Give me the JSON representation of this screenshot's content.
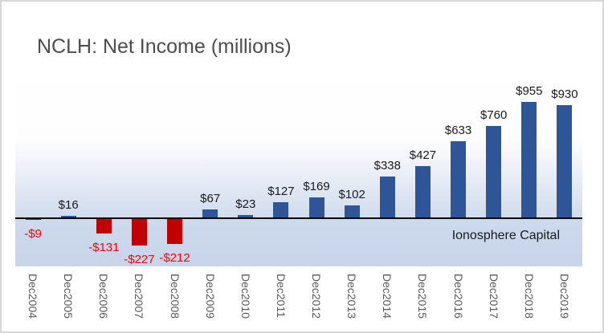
{
  "title": "NCLH: Net Income (millions)",
  "watermark": "Ionosphere Capital",
  "colors": {
    "positive_bar": "#2E5597",
    "negative_bar": "#C00000",
    "positive_label": "#1A1A1A",
    "negative_label": "#FF0000",
    "axis_tick_label": "#595959",
    "title_text": "#4D4D4D",
    "axis_line": "#000000",
    "plot_gradient_top": "#FFFFFF",
    "plot_gradient_bottom": "#C8D5EA",
    "frame_border": "#D8D8D8"
  },
  "chart_data": {
    "type": "bar",
    "title": "NCLH: Net Income (millions)",
    "categories": [
      "Dec2004",
      "Dec2005",
      "Dec2006",
      "Dec2007",
      "Dec2008",
      "Dec2009",
      "Dec2010",
      "Dec2011",
      "Dec2012",
      "Dec2013",
      "Dec2014",
      "Dec2015",
      "Dec2016",
      "Dec2017",
      "Dec2018",
      "Dec2019"
    ],
    "values": [
      -9,
      16,
      -131,
      -227,
      -212,
      67,
      23,
      127,
      169,
      102,
      338,
      427,
      633,
      760,
      955,
      930
    ],
    "value_labels": [
      "-$9",
      "$16",
      "-$131",
      "-$227",
      "-$212",
      "$67",
      "$23",
      "$127",
      "$169",
      "$102",
      "$338",
      "$427",
      "$633",
      "$760",
      "$955",
      "$930"
    ],
    "xlabel": "",
    "ylabel": "",
    "ylim": [
      -400,
      1200
    ],
    "grid": false,
    "legend": false,
    "x_tick_rotation_deg": 90,
    "annotation": "Ionosphere Capital"
  }
}
